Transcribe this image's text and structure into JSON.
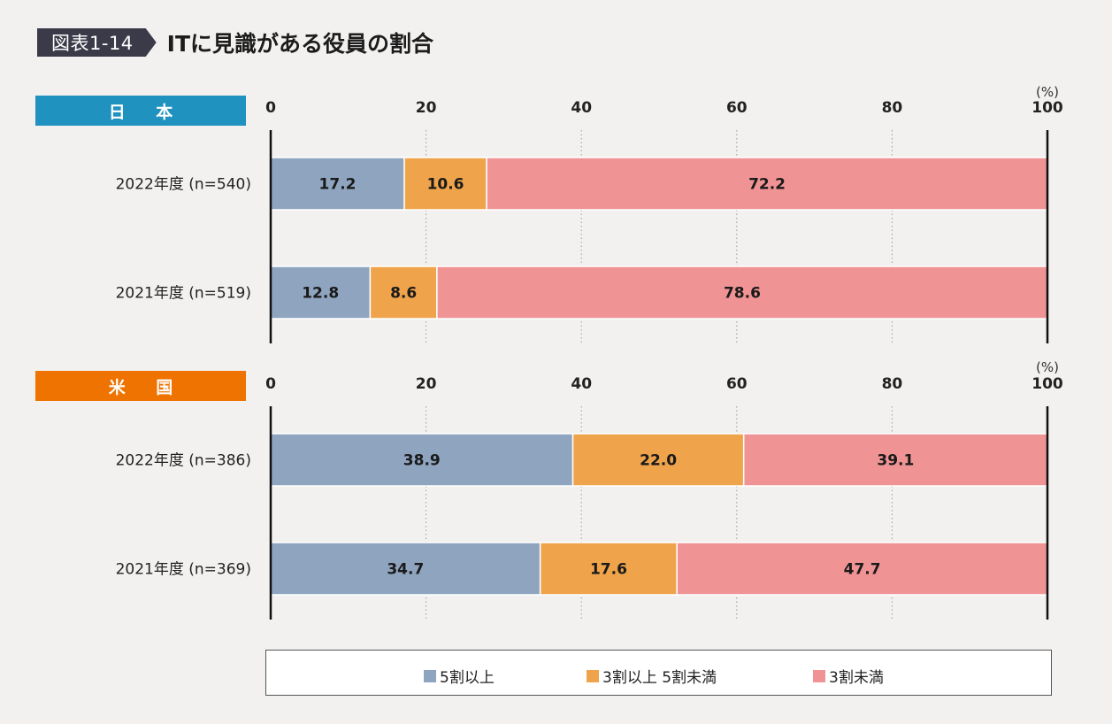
{
  "header": {
    "badge": "図表1-14",
    "title": "ITに見識がある役員の割合"
  },
  "colors": {
    "badge_bg": "#3a3a49",
    "japan_label_bg": "#1f92bf",
    "us_label_bg": "#ee7300",
    "series_1": "#8ea4bf",
    "series_2": "#efa34b",
    "series_3": "#f09394"
  },
  "chart_data": [
    {
      "type": "bar",
      "orientation": "horizontal",
      "stacked": true,
      "panel_label": "日 本",
      "unit": "(%)",
      "xlim": [
        0,
        100
      ],
      "ticks": [
        "0",
        "20",
        "40",
        "60",
        "80",
        "100"
      ],
      "categories": [
        "2022年度 (n=540)",
        "2021年度 (n=519)"
      ],
      "series": [
        {
          "name": "5割以上",
          "values": [
            17.2,
            12.8
          ],
          "labels": [
            "17.2",
            "12.8"
          ]
        },
        {
          "name": "3割以上 5割未満",
          "values": [
            10.6,
            8.6
          ],
          "labels": [
            "10.6",
            "8.6"
          ]
        },
        {
          "name": "3割未満",
          "values": [
            72.2,
            78.6
          ],
          "labels": [
            "72.2",
            "78.6"
          ]
        }
      ]
    },
    {
      "type": "bar",
      "orientation": "horizontal",
      "stacked": true,
      "panel_label": "米 国",
      "unit": "(%)",
      "xlim": [
        0,
        100
      ],
      "ticks": [
        "0",
        "20",
        "40",
        "60",
        "80",
        "100"
      ],
      "categories": [
        "2022年度 (n=386)",
        "2021年度 (n=369)"
      ],
      "series": [
        {
          "name": "5割以上",
          "values": [
            38.9,
            34.7
          ],
          "labels": [
            "38.9",
            "34.7"
          ]
        },
        {
          "name": "3割以上 5割未満",
          "values": [
            22.0,
            17.6
          ],
          "labels": [
            "22.0",
            "17.6"
          ]
        },
        {
          "name": "3割未満",
          "values": [
            39.1,
            47.7
          ],
          "labels": [
            "39.1",
            "47.7"
          ]
        }
      ]
    }
  ],
  "legend": {
    "items": [
      "5割以上",
      "3割以上 5割未満",
      "3割未満"
    ]
  }
}
